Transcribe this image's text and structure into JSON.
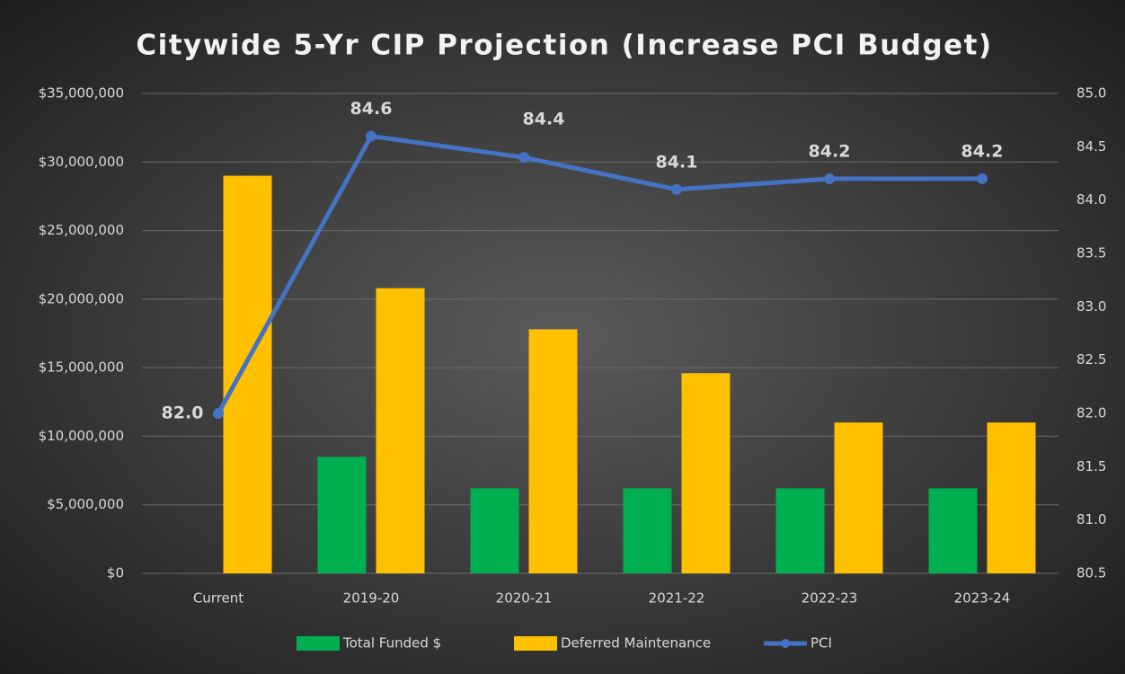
{
  "chart_data": {
    "type": "bar_line",
    "title": "Citywide 5-Yr CIP Projection  (Increase PCI Budget)",
    "categories": [
      "Current",
      "2019-20",
      "2020-21",
      "2021-22",
      "2022-23",
      "2023-24"
    ],
    "series": [
      {
        "name": "Total Funded $",
        "type": "bar",
        "color": "#00b050",
        "values": [
          null,
          8500000,
          6200000,
          6200000,
          6200000,
          6200000
        ]
      },
      {
        "name": "Deferred Maintenance",
        "type": "bar",
        "color": "#ffc000",
        "values": [
          29000000,
          20800000,
          17800000,
          14600000,
          11000000,
          11000000
        ]
      },
      {
        "name": "PCI",
        "type": "line",
        "axis": "y2",
        "color": "#4472c4",
        "values": [
          82.0,
          84.6,
          84.4,
          84.1,
          84.2,
          84.2
        ],
        "value_labels": [
          "82.0",
          "84.6",
          "84.4",
          "84.1",
          "84.2",
          "84.2"
        ]
      }
    ],
    "ylim": [
      0,
      35000000
    ],
    "yticks": [
      {
        "value": 0,
        "label": "$0"
      },
      {
        "value": 5000000,
        "label": "$5,000,000"
      },
      {
        "value": 10000000,
        "label": "$10,000,000"
      },
      {
        "value": 15000000,
        "label": "$15,000,000"
      },
      {
        "value": 20000000,
        "label": "$20,000,000"
      },
      {
        "value": 25000000,
        "label": "$25,000,000"
      },
      {
        "value": 30000000,
        "label": "$30,000,000"
      },
      {
        "value": 35000000,
        "label": "$35,000,000"
      }
    ],
    "y2lim": [
      80.5,
      85.0
    ],
    "y2ticks": [
      80.5,
      {
        "value": 81.0,
        "label": "81.0"
      },
      81.5,
      {
        "value": 82.0,
        "label": "82.0"
      },
      82.5,
      {
        "value": 83.0,
        "label": "83.0"
      },
      83.5,
      {
        "value": 84.0,
        "label": "84.0"
      },
      84.5,
      {
        "value": 85.0,
        "label": "85.0"
      }
    ],
    "grid": true,
    "legend": "bottom"
  }
}
